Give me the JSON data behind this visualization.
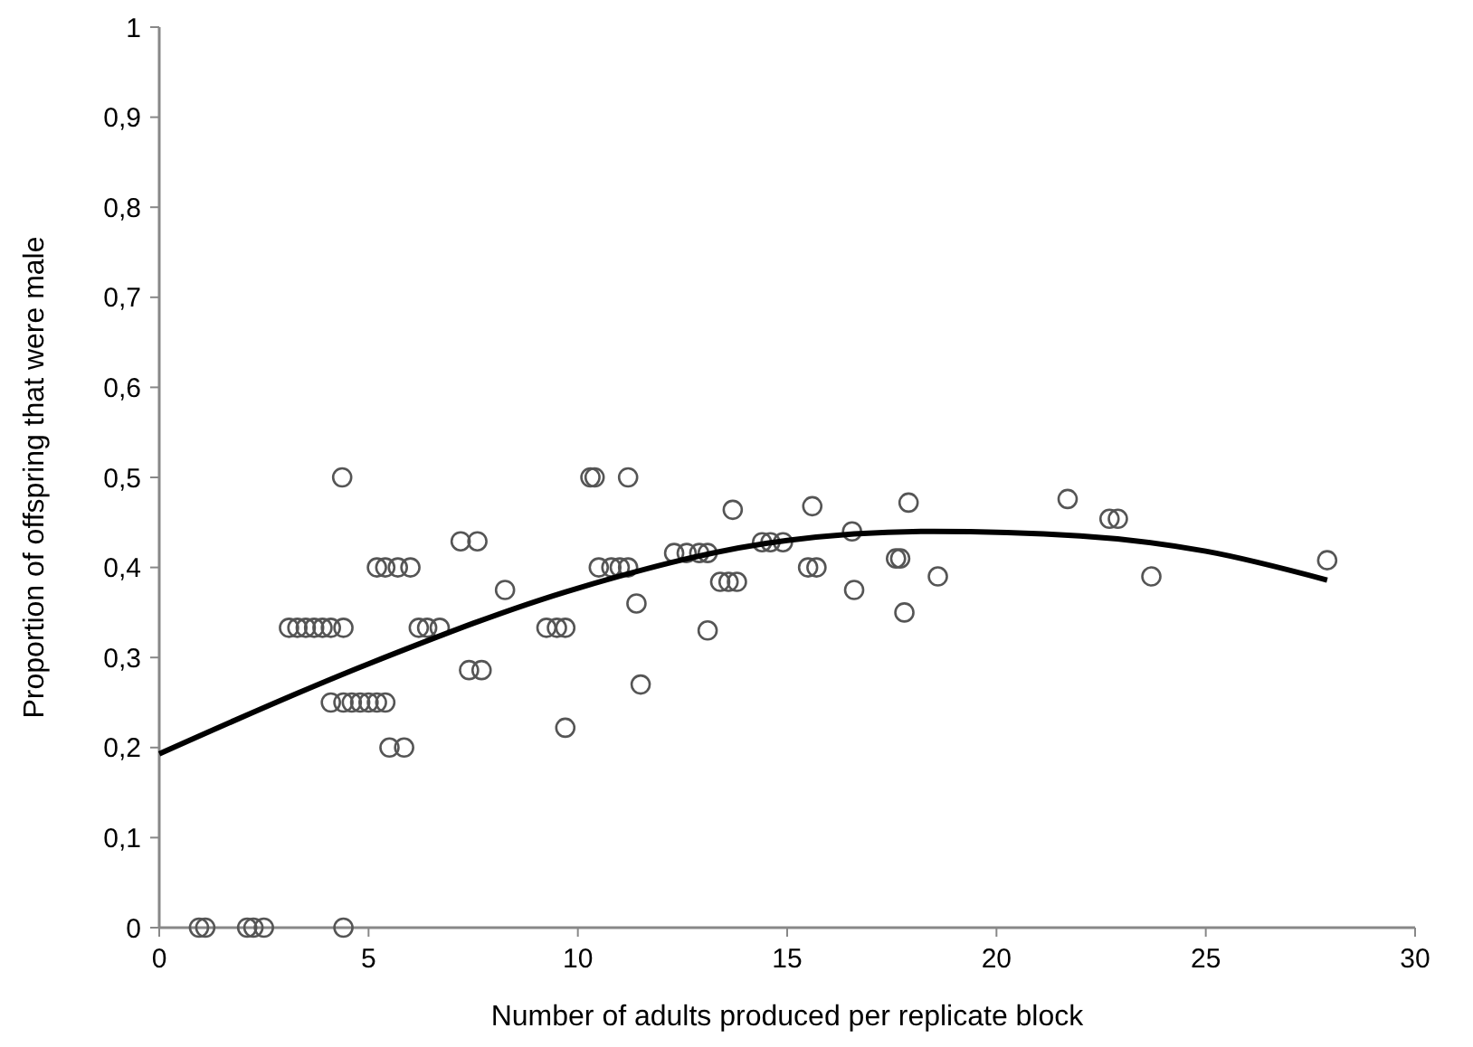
{
  "chart_data": {
    "type": "scatter",
    "xlabel": "Number of adults produced per replicate block",
    "ylabel": "Proportion of offspring that were male",
    "xlim": [
      0,
      30
    ],
    "xticks": [
      0,
      5,
      10,
      15,
      20,
      25,
      30
    ],
    "ylim": [
      0,
      1
    ],
    "yticks": [
      {
        "value": 0,
        "label": "0"
      },
      {
        "value": 0.1,
        "label": "0,1"
      },
      {
        "value": 0.2,
        "label": "0,2"
      },
      {
        "value": 0.3,
        "label": "0,3"
      },
      {
        "value": 0.4,
        "label": "0,4"
      },
      {
        "value": 0.5,
        "label": "0,5"
      },
      {
        "value": 0.6,
        "label": "0,6"
      },
      {
        "value": 0.7,
        "label": "0,7"
      },
      {
        "value": 0.8,
        "label": "0,8"
      },
      {
        "value": 0.9,
        "label": "0,9"
      },
      {
        "value": 1,
        "label": "1"
      }
    ],
    "grid": false,
    "marker": "circle",
    "series": [
      {
        "color": "#555555",
        "x": [
          0.95,
          1.1,
          2.1,
          2.25,
          2.5,
          4.4,
          3.1,
          3.3,
          3.5,
          3.7,
          3.9,
          4.1,
          4.4,
          4.37,
          4.1,
          4.4,
          4.6,
          4.8,
          5.0,
          5.2,
          5.4,
          5.2,
          5.4,
          5.7,
          6.0,
          5.5,
          5.85,
          6.2,
          6.4,
          6.7,
          7.2,
          7.6,
          7.4,
          7.7,
          8.26,
          9.25,
          9.5,
          9.7,
          9.7,
          10.3,
          10.4,
          11.2,
          10.5,
          10.8,
          11.0,
          11.2,
          11.4,
          11.5,
          12.3,
          12.6,
          12.9,
          13.1,
          13.1,
          13.7,
          13.4,
          13.6,
          13.8,
          14.4,
          14.6,
          14.9,
          15.5,
          15.7,
          15.6,
          16.55,
          16.6,
          17.9,
          17.6,
          17.7,
          17.8,
          18.6,
          21.7,
          22.7,
          22.9,
          23.7,
          27.9
        ],
        "values": [
          0,
          0,
          0,
          0,
          0,
          0,
          0.333,
          0.333,
          0.333,
          0.333,
          0.333,
          0.333,
          0.333,
          0.5,
          0.25,
          0.25,
          0.25,
          0.25,
          0.25,
          0.25,
          0.25,
          0.4,
          0.4,
          0.4,
          0.4,
          0.2,
          0.2,
          0.333,
          0.333,
          0.333,
          0.429,
          0.429,
          0.286,
          0.286,
          0.375,
          0.333,
          0.333,
          0.333,
          0.222,
          0.5,
          0.5,
          0.5,
          0.4,
          0.4,
          0.4,
          0.4,
          0.36,
          0.27,
          0.416,
          0.416,
          0.416,
          0.416,
          0.33,
          0.464,
          0.384,
          0.384,
          0.384,
          0.428,
          0.428,
          0.428,
          0.4,
          0.4,
          0.468,
          0.44,
          0.375,
          0.472,
          0.41,
          0.41,
          0.35,
          0.39,
          0.476,
          0.454,
          0.454,
          0.39,
          0.408
        ]
      },
      {
        "type": "line",
        "color": "#000000",
        "marker": "none",
        "x": [
          0,
          5,
          10,
          15,
          18.5,
          22,
          25,
          27.9
        ],
        "values": [
          0.193,
          0.293,
          0.377,
          0.43,
          0.44,
          0.435,
          0.418,
          0.386
        ]
      }
    ]
  }
}
